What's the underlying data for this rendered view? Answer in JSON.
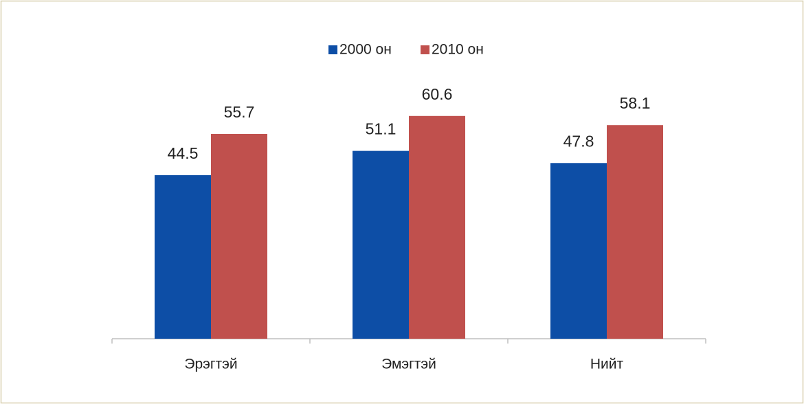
{
  "chart_data": {
    "type": "bar",
    "categories": [
      "Эрэгтэй",
      "Эмэгтэй",
      "Нийт"
    ],
    "series": [
      {
        "name": "2000 он",
        "color": "#0d4ea6",
        "values": [
          44.5,
          51.1,
          47.8
        ]
      },
      {
        "name": "2010 он",
        "color": "#c0504d",
        "values": [
          55.7,
          60.6,
          58.1
        ]
      }
    ],
    "legend": "top"
  }
}
